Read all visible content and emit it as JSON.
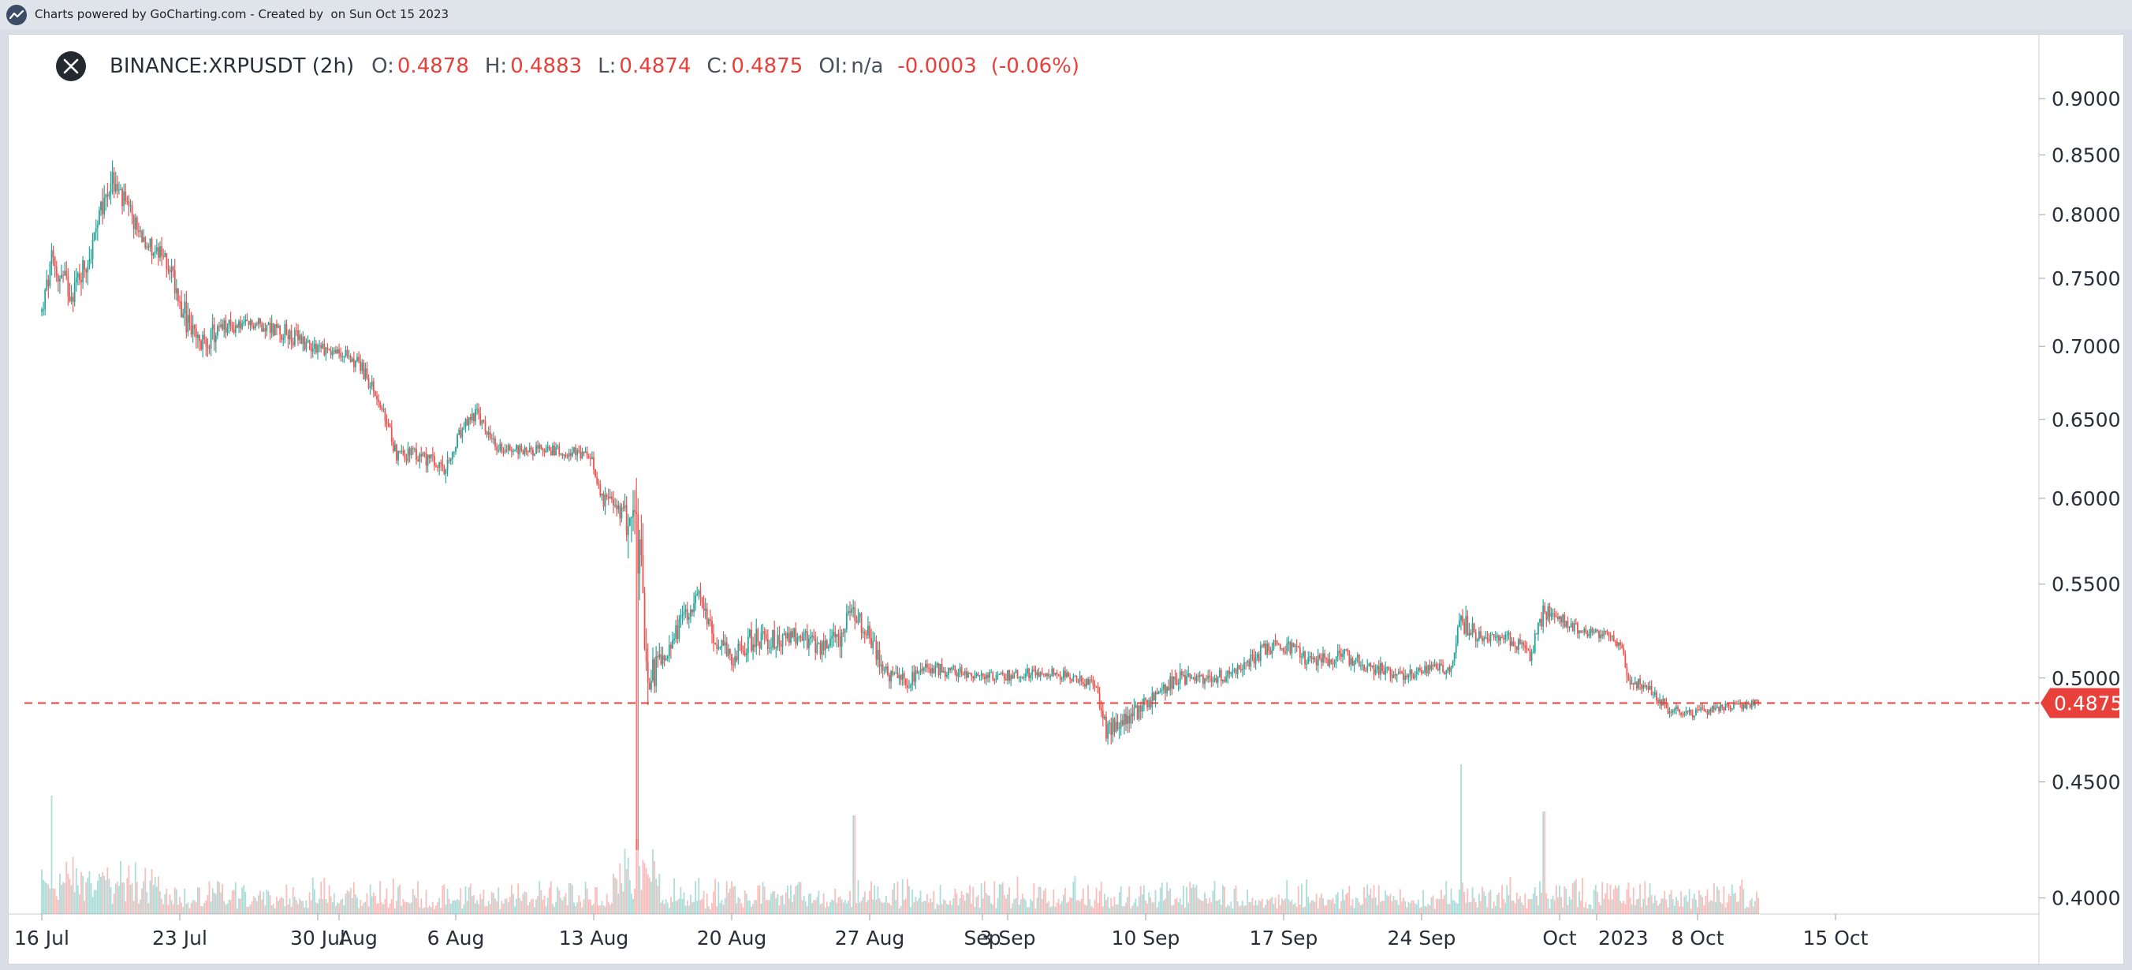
{
  "header": {
    "credit": "Charts powered by GoCharting.com - Created by  on Sun Oct 15 2023"
  },
  "legend": {
    "symbol": "BINANCE:XRPUSDT (2h)",
    "o_label": "O:",
    "o_value": "0.4878",
    "h_label": "H:",
    "h_value": "0.4883",
    "l_label": "L:",
    "l_value": "0.4874",
    "c_label": "C:",
    "c_value": "0.4875",
    "oi_label": "OI:",
    "oi_value": "n/a",
    "change": "-0.0003",
    "change_pct": "(-0.06%)"
  },
  "colors": {
    "up": "#26a69a",
    "down": "#ef5350",
    "last_price": "#e8403a",
    "axis_text": "#2a2e39"
  },
  "chart_data": {
    "type": "candlestick",
    "symbol": "BINANCE:XRPUSDT",
    "interval": "2h",
    "y_scale": "log",
    "ylim": [
      0.392,
      0.93
    ],
    "y_ticks": [
      "0.4000",
      "0.4500",
      "0.5000",
      "0.5500",
      "0.6000",
      "0.6500",
      "0.7000",
      "0.7500",
      "0.8000",
      "0.8500",
      "0.9000"
    ],
    "x_ticks": [
      "16 Jul",
      "23 Jul",
      "30 Jul",
      "Aug",
      "6 Aug",
      "13 Aug",
      "20 Aug",
      "27 Aug",
      "Sep",
      "3 Sep",
      "10 Sep",
      "17 Sep",
      "24 Sep",
      "Oct",
      "2023",
      "8 Oct",
      "15 Oct"
    ],
    "x_tick_days": [
      0,
      7,
      14,
      16,
      21,
      28,
      35,
      42,
      47,
      49,
      56,
      63,
      70,
      77,
      77.8,
      84,
      91
    ],
    "last_price_label": "0.4875",
    "last_price": 0.4875,
    "price_path": [
      [
        0,
        0.725,
        0.7,
        0.73
      ],
      [
        0.5,
        0.76,
        0.72,
        0.79
      ],
      [
        1.5,
        0.74,
        0.71,
        0.77
      ],
      [
        2.5,
        0.77,
        0.74,
        0.8
      ],
      [
        3.5,
        0.83,
        0.79,
        0.86
      ],
      [
        4,
        0.815,
        0.78,
        0.84
      ],
      [
        4.8,
        0.79,
        0.77,
        0.81
      ],
      [
        5.5,
        0.775,
        0.75,
        0.79
      ],
      [
        6.5,
        0.76,
        0.73,
        0.78
      ],
      [
        7.3,
        0.72,
        0.68,
        0.74
      ],
      [
        8,
        0.7,
        0.675,
        0.72
      ],
      [
        9,
        0.712,
        0.69,
        0.735
      ],
      [
        10,
        0.715,
        0.7,
        0.73
      ],
      [
        11,
        0.716,
        0.7,
        0.73
      ],
      [
        12,
        0.712,
        0.695,
        0.738
      ],
      [
        13,
        0.705,
        0.69,
        0.725
      ],
      [
        14,
        0.7,
        0.685,
        0.715
      ],
      [
        15,
        0.695,
        0.68,
        0.705
      ],
      [
        16,
        0.69,
        0.665,
        0.7
      ],
      [
        17,
        0.665,
        0.65,
        0.675
      ],
      [
        18,
        0.628,
        0.61,
        0.64
      ],
      [
        19.5,
        0.625,
        0.61,
        0.64
      ],
      [
        20.5,
        0.615,
        0.596,
        0.63
      ],
      [
        21.2,
        0.64,
        0.625,
        0.65
      ],
      [
        22,
        0.655,
        0.64,
        0.668
      ],
      [
        23,
        0.632,
        0.62,
        0.645
      ],
      [
        24.5,
        0.63,
        0.62,
        0.64
      ],
      [
        26.5,
        0.63,
        0.62,
        0.64
      ],
      [
        27.8,
        0.625,
        0.61,
        0.638
      ],
      [
        28.5,
        0.6,
        0.585,
        0.615
      ],
      [
        29.5,
        0.59,
        0.57,
        0.6
      ],
      [
        30.2,
        0.585,
        0.42,
        0.59
      ],
      [
        30.8,
        0.5,
        0.47,
        0.525
      ],
      [
        31.5,
        0.51,
        0.49,
        0.525
      ],
      [
        32.5,
        0.53,
        0.51,
        0.545
      ],
      [
        33.2,
        0.545,
        0.525,
        0.562
      ],
      [
        34.2,
        0.52,
        0.505,
        0.535
      ],
      [
        35,
        0.51,
        0.5,
        0.525
      ],
      [
        36,
        0.52,
        0.505,
        0.54
      ],
      [
        37.5,
        0.52,
        0.505,
        0.533
      ],
      [
        38.5,
        0.522,
        0.51,
        0.535
      ],
      [
        39.5,
        0.515,
        0.505,
        0.528
      ],
      [
        40.5,
        0.522,
        0.51,
        0.55
      ],
      [
        41.2,
        0.535,
        0.52,
        0.548
      ],
      [
        42.3,
        0.515,
        0.495,
        0.53
      ],
      [
        43,
        0.5,
        0.489,
        0.512
      ],
      [
        44,
        0.498,
        0.487,
        0.51
      ],
      [
        45,
        0.505,
        0.492,
        0.512
      ],
      [
        46.5,
        0.503,
        0.493,
        0.51
      ],
      [
        48,
        0.5,
        0.49,
        0.508
      ],
      [
        49.5,
        0.502,
        0.493,
        0.51
      ],
      [
        51,
        0.503,
        0.495,
        0.51
      ],
      [
        52.5,
        0.5,
        0.492,
        0.507
      ],
      [
        53.5,
        0.495,
        0.485,
        0.503
      ],
      [
        54,
        0.475,
        0.46,
        0.49
      ],
      [
        55,
        0.48,
        0.465,
        0.492
      ],
      [
        56.5,
        0.49,
        0.478,
        0.498
      ],
      [
        57.5,
        0.5,
        0.485,
        0.51
      ],
      [
        59,
        0.5,
        0.49,
        0.508
      ],
      [
        60.5,
        0.502,
        0.49,
        0.51
      ],
      [
        62,
        0.515,
        0.5,
        0.525
      ],
      [
        63,
        0.517,
        0.505,
        0.527
      ],
      [
        64.5,
        0.508,
        0.498,
        0.52
      ],
      [
        66,
        0.512,
        0.5,
        0.522
      ],
      [
        67.5,
        0.505,
        0.495,
        0.515
      ],
      [
        69,
        0.502,
        0.492,
        0.512
      ],
      [
        70.5,
        0.505,
        0.495,
        0.512
      ],
      [
        71.5,
        0.505,
        0.495,
        0.514
      ],
      [
        72,
        0.53,
        0.51,
        0.55
      ],
      [
        73,
        0.52,
        0.51,
        0.53
      ],
      [
        74.5,
        0.52,
        0.508,
        0.53
      ],
      [
        75.5,
        0.512,
        0.5,
        0.522
      ],
      [
        76.2,
        0.535,
        0.52,
        0.548
      ],
      [
        77.5,
        0.528,
        0.518,
        0.535
      ],
      [
        78.5,
        0.523,
        0.515,
        0.532
      ],
      [
        79.5,
        0.522,
        0.515,
        0.53
      ],
      [
        80.2,
        0.515,
        0.505,
        0.522
      ],
      [
        80.5,
        0.498,
        0.487,
        0.51
      ],
      [
        81.5,
        0.495,
        0.485,
        0.503
      ],
      [
        82.5,
        0.485,
        0.477,
        0.493
      ],
      [
        83.5,
        0.482,
        0.475,
        0.49
      ],
      [
        84.5,
        0.484,
        0.477,
        0.49
      ],
      [
        86,
        0.486,
        0.48,
        0.492
      ],
      [
        87,
        0.4875,
        0.482,
        0.492
      ]
    ]
  }
}
